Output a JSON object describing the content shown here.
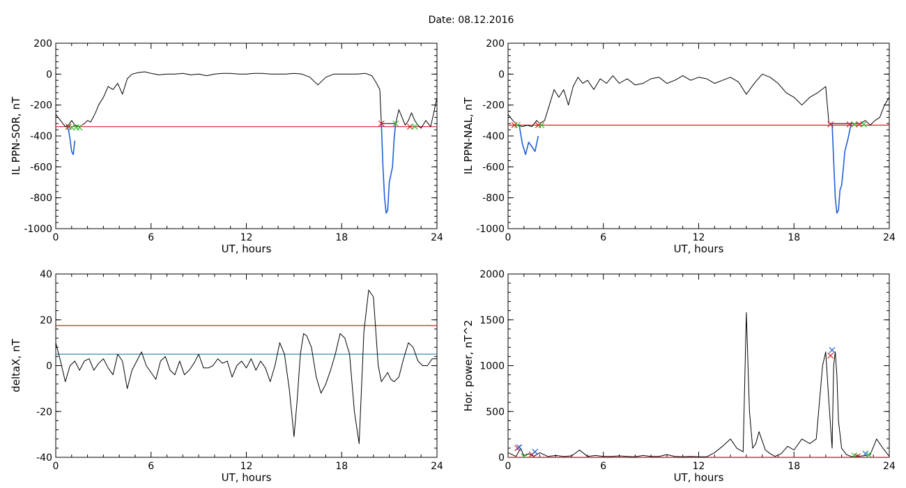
{
  "figure_title": "Date:  08.12.2016",
  "colors": {
    "black": "#000000",
    "red": "#d42020",
    "blue": "#1f5fd6",
    "teal": "#1f7fa8",
    "green": "#2fbf2f"
  },
  "chart_data": [
    {
      "type": "line",
      "id": "il-sor",
      "xlabel": "UT, hours",
      "ylabel": "IL PPN-SOR, nT",
      "xlim": [
        0,
        24
      ],
      "ylim": [
        -1000,
        200
      ],
      "xticks": [
        "0",
        "6",
        "12",
        "18",
        "24"
      ],
      "yticks": [
        "200",
        "0",
        "-200",
        "-400",
        "-600",
        "-800",
        "-1000"
      ],
      "series": [
        {
          "color": "#000000",
          "x": [
            0,
            0.3,
            0.6,
            0.8,
            1.0,
            1.2,
            1.5,
            1.8,
            2.0,
            2.2,
            2.5,
            2.7,
            3.0,
            3.3,
            3.6,
            3.9,
            4.2,
            4.5,
            4.8,
            5.2,
            5.6,
            6.0,
            6.5,
            7.0,
            7.5,
            8.0,
            8.5,
            9.0,
            9.5,
            10,
            10.5,
            11,
            11.5,
            12,
            12.5,
            13,
            13.5,
            14,
            14.5,
            15,
            15.5,
            16,
            16.5,
            17,
            17.5,
            18,
            18.5,
            19,
            19.5,
            19.9,
            20.2,
            20.4,
            20.5,
            21.4,
            21.6,
            21.8,
            22.0,
            22.2,
            22.4,
            22.6,
            22.8,
            23.0,
            23.3,
            23.6,
            23.8,
            24
          ],
          "y": [
            -260,
            -300,
            -340,
            -330,
            -300,
            -330,
            -340,
            -320,
            -300,
            -310,
            -250,
            -200,
            -150,
            -80,
            -100,
            -60,
            -130,
            -30,
            0,
            10,
            15,
            5,
            -5,
            0,
            0,
            5,
            -5,
            0,
            -10,
            0,
            5,
            5,
            0,
            0,
            5,
            5,
            0,
            0,
            0,
            5,
            0,
            -20,
            -70,
            -20,
            0,
            0,
            0,
            0,
            5,
            -10,
            -60,
            -100,
            -320,
            -320,
            -230,
            -280,
            -330,
            -300,
            -250,
            -300,
            -330,
            -350,
            -300,
            -340,
            -250,
            -150
          ]
        },
        {
          "color": "#1f5fd6",
          "x": [
            0.7,
            0.8,
            0.9,
            1.0,
            1.1,
            1.2
          ],
          "y": [
            -340,
            -360,
            -420,
            -500,
            -520,
            -430
          ]
        },
        {
          "color": "#1f5fd6",
          "x": [
            20.5,
            20.6,
            20.7,
            20.8,
            20.9,
            21.0,
            21.1,
            21.2,
            21.3,
            21.4
          ],
          "y": [
            -320,
            -600,
            -800,
            -900,
            -880,
            -700,
            -650,
            -600,
            -420,
            -320
          ]
        }
      ],
      "hlines": [
        {
          "y": -340,
          "color": "#d42020"
        }
      ],
      "markers": [
        {
          "x": 0.8,
          "y": -340,
          "color": "#d42020"
        },
        {
          "x": 1.0,
          "y": -345,
          "color": "#2fbf2f"
        },
        {
          "x": 1.3,
          "y": -345,
          "color": "#2fbf2f"
        },
        {
          "x": 1.5,
          "y": -345,
          "color": "#2fbf2f"
        },
        {
          "x": 20.5,
          "y": -320,
          "color": "#d42020"
        },
        {
          "x": 21.4,
          "y": -320,
          "color": "#2fbf2f"
        },
        {
          "x": 22.3,
          "y": -340,
          "color": "#d42020"
        },
        {
          "x": 22.6,
          "y": -340,
          "color": "#2fbf2f"
        }
      ]
    },
    {
      "type": "line",
      "id": "il-nal",
      "xlabel": "UT, hours",
      "ylabel": "IL PPN-NAL, nT",
      "xlim": [
        0,
        24
      ],
      "ylim": [
        -1000,
        200
      ],
      "xticks": [
        "0",
        "6",
        "12",
        "18",
        "24"
      ],
      "yticks": [
        "200",
        "0",
        "-200",
        "-400",
        "-600",
        "-800",
        "-1000"
      ],
      "series": [
        {
          "color": "#000000",
          "x": [
            0,
            0.3,
            0.6,
            0.9,
            1.2,
            1.5,
            1.8,
            2.0,
            2.3,
            2.6,
            2.9,
            3.2,
            3.5,
            3.8,
            4.1,
            4.4,
            4.7,
            5.0,
            5.4,
            5.8,
            6.2,
            6.6,
            7.0,
            7.5,
            8.0,
            8.5,
            9.0,
            9.5,
            10,
            10.5,
            11,
            11.5,
            12,
            12.5,
            13,
            13.5,
            14,
            14.5,
            15,
            15.5,
            16,
            16.5,
            17,
            17.5,
            18,
            18.5,
            19,
            19.5,
            20.0,
            20.2,
            20.4,
            21.6,
            21.9,
            22.2,
            22.5,
            22.8,
            23.1,
            23.4,
            23.7,
            24
          ],
          "y": [
            -260,
            -300,
            -330,
            -340,
            -330,
            -340,
            -300,
            -320,
            -300,
            -200,
            -100,
            -150,
            -100,
            -200,
            -80,
            -20,
            -60,
            -40,
            -100,
            -30,
            -60,
            -10,
            -60,
            -30,
            -70,
            -60,
            -30,
            -20,
            -60,
            -40,
            -10,
            -40,
            -20,
            -30,
            -60,
            -40,
            -20,
            -50,
            -130,
            -60,
            0,
            -20,
            -60,
            -120,
            -150,
            -200,
            -150,
            -120,
            -80,
            -320,
            -320,
            -320,
            -320,
            -320,
            -300,
            -330,
            -300,
            -280,
            -200,
            -150
          ]
        },
        {
          "color": "#1f5fd6",
          "x": [
            0.7,
            0.9,
            1.1,
            1.3,
            1.5,
            1.7,
            1.9
          ],
          "y": [
            -330,
            -450,
            -520,
            -440,
            -470,
            -500,
            -400
          ]
        },
        {
          "color": "#1f5fd6",
          "x": [
            20.4,
            20.5,
            20.6,
            20.7,
            20.8,
            20.9,
            21.0,
            21.1,
            21.2,
            21.4,
            21.6
          ],
          "y": [
            -320,
            -560,
            -800,
            -900,
            -880,
            -750,
            -720,
            -620,
            -500,
            -420,
            -320
          ]
        }
      ],
      "hlines": [
        {
          "y": -330,
          "color": "#d42020"
        }
      ],
      "markers": [
        {
          "x": 0.4,
          "y": -330,
          "color": "#d42020"
        },
        {
          "x": 0.6,
          "y": -330,
          "color": "#2fbf2f"
        },
        {
          "x": 1.9,
          "y": -330,
          "color": "#d42020"
        },
        {
          "x": 2.1,
          "y": -330,
          "color": "#2fbf2f"
        },
        {
          "x": 20.3,
          "y": -325,
          "color": "#d42020"
        },
        {
          "x": 21.5,
          "y": -325,
          "color": "#d42020"
        },
        {
          "x": 21.8,
          "y": -325,
          "color": "#2fbf2f"
        },
        {
          "x": 22.1,
          "y": -325,
          "color": "#d42020"
        },
        {
          "x": 22.4,
          "y": -325,
          "color": "#2fbf2f"
        }
      ]
    },
    {
      "type": "line",
      "id": "deltax",
      "xlabel": "UT, hours",
      "ylabel": "deltaX, nT",
      "xlim": [
        0,
        24
      ],
      "ylim": [
        -40,
        40
      ],
      "xticks": [
        "0",
        "6",
        "12",
        "18",
        "24"
      ],
      "yticks": [
        "40",
        "20",
        "0",
        "-20",
        "-40"
      ],
      "series": [
        {
          "color": "#000000",
          "x": [
            0,
            0.3,
            0.6,
            0.9,
            1.2,
            1.5,
            1.8,
            2.1,
            2.4,
            2.7,
            3.0,
            3.3,
            3.6,
            3.9,
            4.2,
            4.5,
            4.8,
            5.1,
            5.4,
            5.7,
            6.0,
            6.3,
            6.6,
            6.9,
            7.2,
            7.5,
            7.8,
            8.1,
            8.4,
            8.7,
            9.0,
            9.3,
            9.6,
            9.9,
            10.2,
            10.5,
            10.8,
            11.1,
            11.4,
            11.7,
            12.0,
            12.3,
            12.6,
            12.9,
            13.2,
            13.5,
            13.8,
            14.1,
            14.4,
            14.7,
            15.0,
            15.2,
            15.4,
            15.6,
            15.8,
            16.1,
            16.4,
            16.7,
            17.0,
            17.3,
            17.6,
            17.9,
            18.2,
            18.5,
            18.8,
            19.1,
            19.4,
            19.7,
            20.0,
            20.3,
            20.5,
            20.7,
            20.9,
            21.1,
            21.3,
            21.6,
            21.9,
            22.2,
            22.5,
            22.8,
            23.1,
            23.4,
            23.7,
            24
          ],
          "y": [
            10,
            2,
            -7,
            0,
            2,
            -2,
            2,
            3,
            -2,
            1,
            3,
            -1,
            -4,
            5,
            2,
            -10,
            -2,
            2,
            6,
            0,
            -3,
            -6,
            2,
            4,
            -2,
            -4,
            2,
            -4,
            -2,
            1,
            5,
            -1,
            -1,
            0,
            3,
            1,
            2,
            -5,
            0,
            2,
            -1,
            3,
            -2,
            2,
            -1,
            -7,
            0,
            10,
            5,
            -10,
            -31,
            -15,
            5,
            14,
            13,
            8,
            -5,
            -12,
            -8,
            -2,
            5,
            14,
            12,
            5,
            -20,
            -34,
            15,
            33,
            30,
            0,
            -7,
            -5,
            -3,
            -6,
            -7,
            -5,
            3,
            10,
            8,
            2,
            0,
            0,
            3,
            3
          ]
        }
      ],
      "hlines": [
        {
          "y": 17.5,
          "color": "#d42020"
        },
        {
          "y": 5,
          "color": "#1f7fa8"
        }
      ],
      "markers": []
    },
    {
      "type": "line",
      "id": "hor-power",
      "xlabel": "UT, hours",
      "ylabel": "Hor. power, nT^2",
      "xlim": [
        0,
        24
      ],
      "ylim": [
        0,
        2000
      ],
      "xticks": [
        "0",
        "6",
        "12",
        "18",
        "24"
      ],
      "yticks": [
        "2000",
        "1500",
        "1000",
        "500",
        "0"
      ],
      "series": [
        {
          "color": "#000000",
          "x": [
            0,
            0.5,
            0.8,
            1.0,
            1.3,
            1.6,
            2.0,
            2.5,
            3.0,
            3.5,
            4.0,
            4.5,
            5.0,
            5.5,
            6.0,
            6.5,
            7.0,
            7.5,
            8.0,
            8.5,
            9.0,
            9.5,
            10,
            10.5,
            11,
            11.5,
            12,
            12.5,
            13,
            13.5,
            14,
            14.4,
            14.8,
            15.0,
            15.2,
            15.4,
            15.6,
            15.8,
            16.2,
            16.5,
            16.8,
            17.2,
            17.6,
            18.0,
            18.5,
            19.0,
            19.4,
            19.8,
            20.0,
            20.2,
            20.4,
            20.5,
            20.6,
            20.7,
            20.8,
            21.0,
            21.3,
            21.6,
            22.0,
            22.5,
            22.8,
            23.2,
            23.6,
            24
          ],
          "y": [
            50,
            10,
            100,
            10,
            40,
            10,
            50,
            10,
            20,
            10,
            15,
            80,
            10,
            20,
            10,
            10,
            15,
            10,
            5,
            20,
            10,
            10,
            30,
            10,
            5,
            10,
            5,
            5,
            50,
            120,
            200,
            100,
            60,
            1580,
            500,
            100,
            150,
            280,
            80,
            40,
            10,
            40,
            120,
            80,
            200,
            150,
            200,
            1000,
            1150,
            600,
            100,
            1000,
            1150,
            900,
            400,
            100,
            30,
            10,
            10,
            20,
            30,
            200,
            100,
            10
          ]
        }
      ],
      "hlines": [
        {
          "y": 0,
          "color": "#d42020"
        }
      ],
      "markers": [
        {
          "x": 0.6,
          "y": 100,
          "color": "#d42020"
        },
        {
          "x": 0.7,
          "y": 110,
          "color": "#1f5fd6"
        },
        {
          "x": 1.0,
          "y": 10,
          "color": "#2fbf2f"
        },
        {
          "x": 1.5,
          "y": 30,
          "color": "#d42020"
        },
        {
          "x": 1.7,
          "y": 60,
          "color": "#1f5fd6"
        },
        {
          "x": 20.3,
          "y": 1110,
          "color": "#d42020"
        },
        {
          "x": 20.4,
          "y": 1170,
          "color": "#1f5fd6"
        },
        {
          "x": 21.8,
          "y": 20,
          "color": "#2fbf2f"
        },
        {
          "x": 22.0,
          "y": 10,
          "color": "#d42020"
        },
        {
          "x": 22.5,
          "y": 40,
          "color": "#1f5fd6"
        },
        {
          "x": 22.7,
          "y": 30,
          "color": "#2fbf2f"
        }
      ]
    }
  ]
}
